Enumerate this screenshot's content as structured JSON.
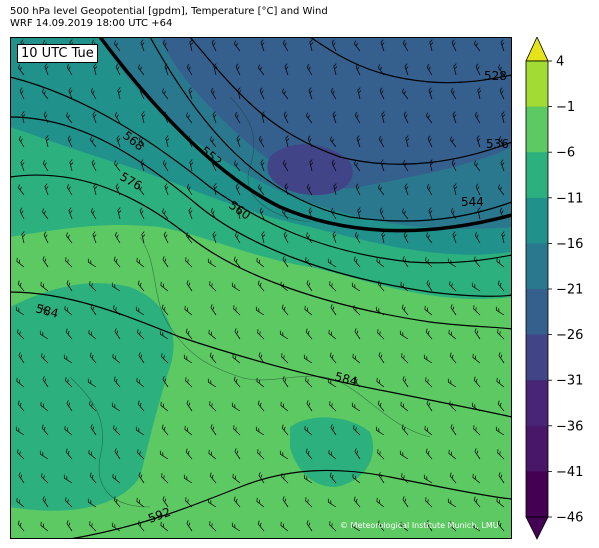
{
  "header": {
    "title_line1": "500 hPa level Geopotential [gpdm], Temperature [°C] and Wind",
    "title_line2": "WRF 14.09.2019 18:00 UTC +64"
  },
  "map": {
    "time_label": "10 UTC Tue",
    "copyright": "© Meteorological Institute Munich, LMU",
    "contour_labels": [
      "528",
      "536",
      "544",
      "552",
      "560",
      "568",
      "576",
      "584",
      "584",
      "592"
    ]
  },
  "colorbar": {
    "ticks": [
      "4",
      "−1",
      "−6",
      "−11",
      "−16",
      "−21",
      "−26",
      "−31",
      "−36",
      "−41",
      "−46"
    ],
    "colors": [
      "#e4e419",
      "#a2db34",
      "#5dc962",
      "#2cb17e",
      "#21918c",
      "#2a788e",
      "#355f8d",
      "#414487",
      "#482576",
      "#481769",
      "#440154"
    ]
  }
}
